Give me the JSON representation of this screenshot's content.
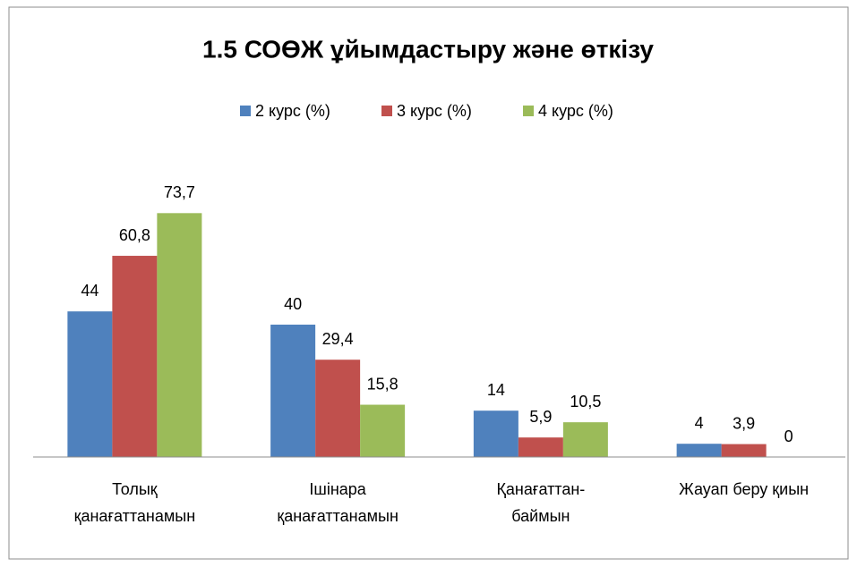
{
  "chart_data": {
    "type": "bar",
    "title": "1.5 СОӨЖ ұйымдастыру және өткізу",
    "categories": [
      [
        "Толық",
        "қанағаттанамын"
      ],
      [
        "Ішінара",
        "қанағаттанамын"
      ],
      [
        "Қанағаттан-",
        "баймын"
      ],
      [
        "Жауап беру қиын"
      ]
    ],
    "series": [
      {
        "name": "2 курс (%)",
        "color": "#4f81bd",
        "values": [
          44,
          40,
          14,
          4
        ],
        "value_labels": [
          "44",
          "40",
          "14",
          "4"
        ]
      },
      {
        "name": "3 курс (%)",
        "color": "#c0504d",
        "values": [
          60.8,
          29.4,
          5.9,
          3.9
        ],
        "value_labels": [
          "60,8",
          "29,4",
          "5,9",
          "3,9"
        ]
      },
      {
        "name": "4 курс (%)",
        "color": "#9bbb59",
        "values": [
          73.7,
          15.8,
          10.5,
          0
        ],
        "value_labels": [
          "73,7",
          "15,8",
          "10,5",
          "0"
        ]
      }
    ],
    "ylim": [
      0,
      80
    ],
    "legend": "top"
  }
}
